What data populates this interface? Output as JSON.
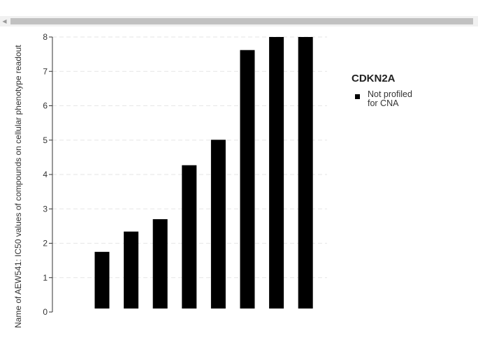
{
  "scrollbar": {
    "left_arrow": "◀"
  },
  "chart_data": {
    "type": "bar",
    "ylabel": "Name of AEW541: IC50 values of compounds on cellular phenotype readout",
    "ylim": [
      0,
      8
    ],
    "yticks": [
      0,
      1,
      2,
      3,
      4,
      5,
      6,
      7,
      8
    ],
    "grid": true,
    "categories": [
      "",
      "",
      "",
      "",
      "",
      "",
      "",
      ""
    ],
    "series": [
      {
        "name": "Not profiled for CNA",
        "color": "#000000",
        "values": [
          1.75,
          2.34,
          2.7,
          4.27,
          5.01,
          7.62,
          8,
          8
        ]
      }
    ],
    "legend": {
      "title": "CDKN2A",
      "placement": "right",
      "items": [
        "Not profiled for CNA"
      ]
    }
  }
}
